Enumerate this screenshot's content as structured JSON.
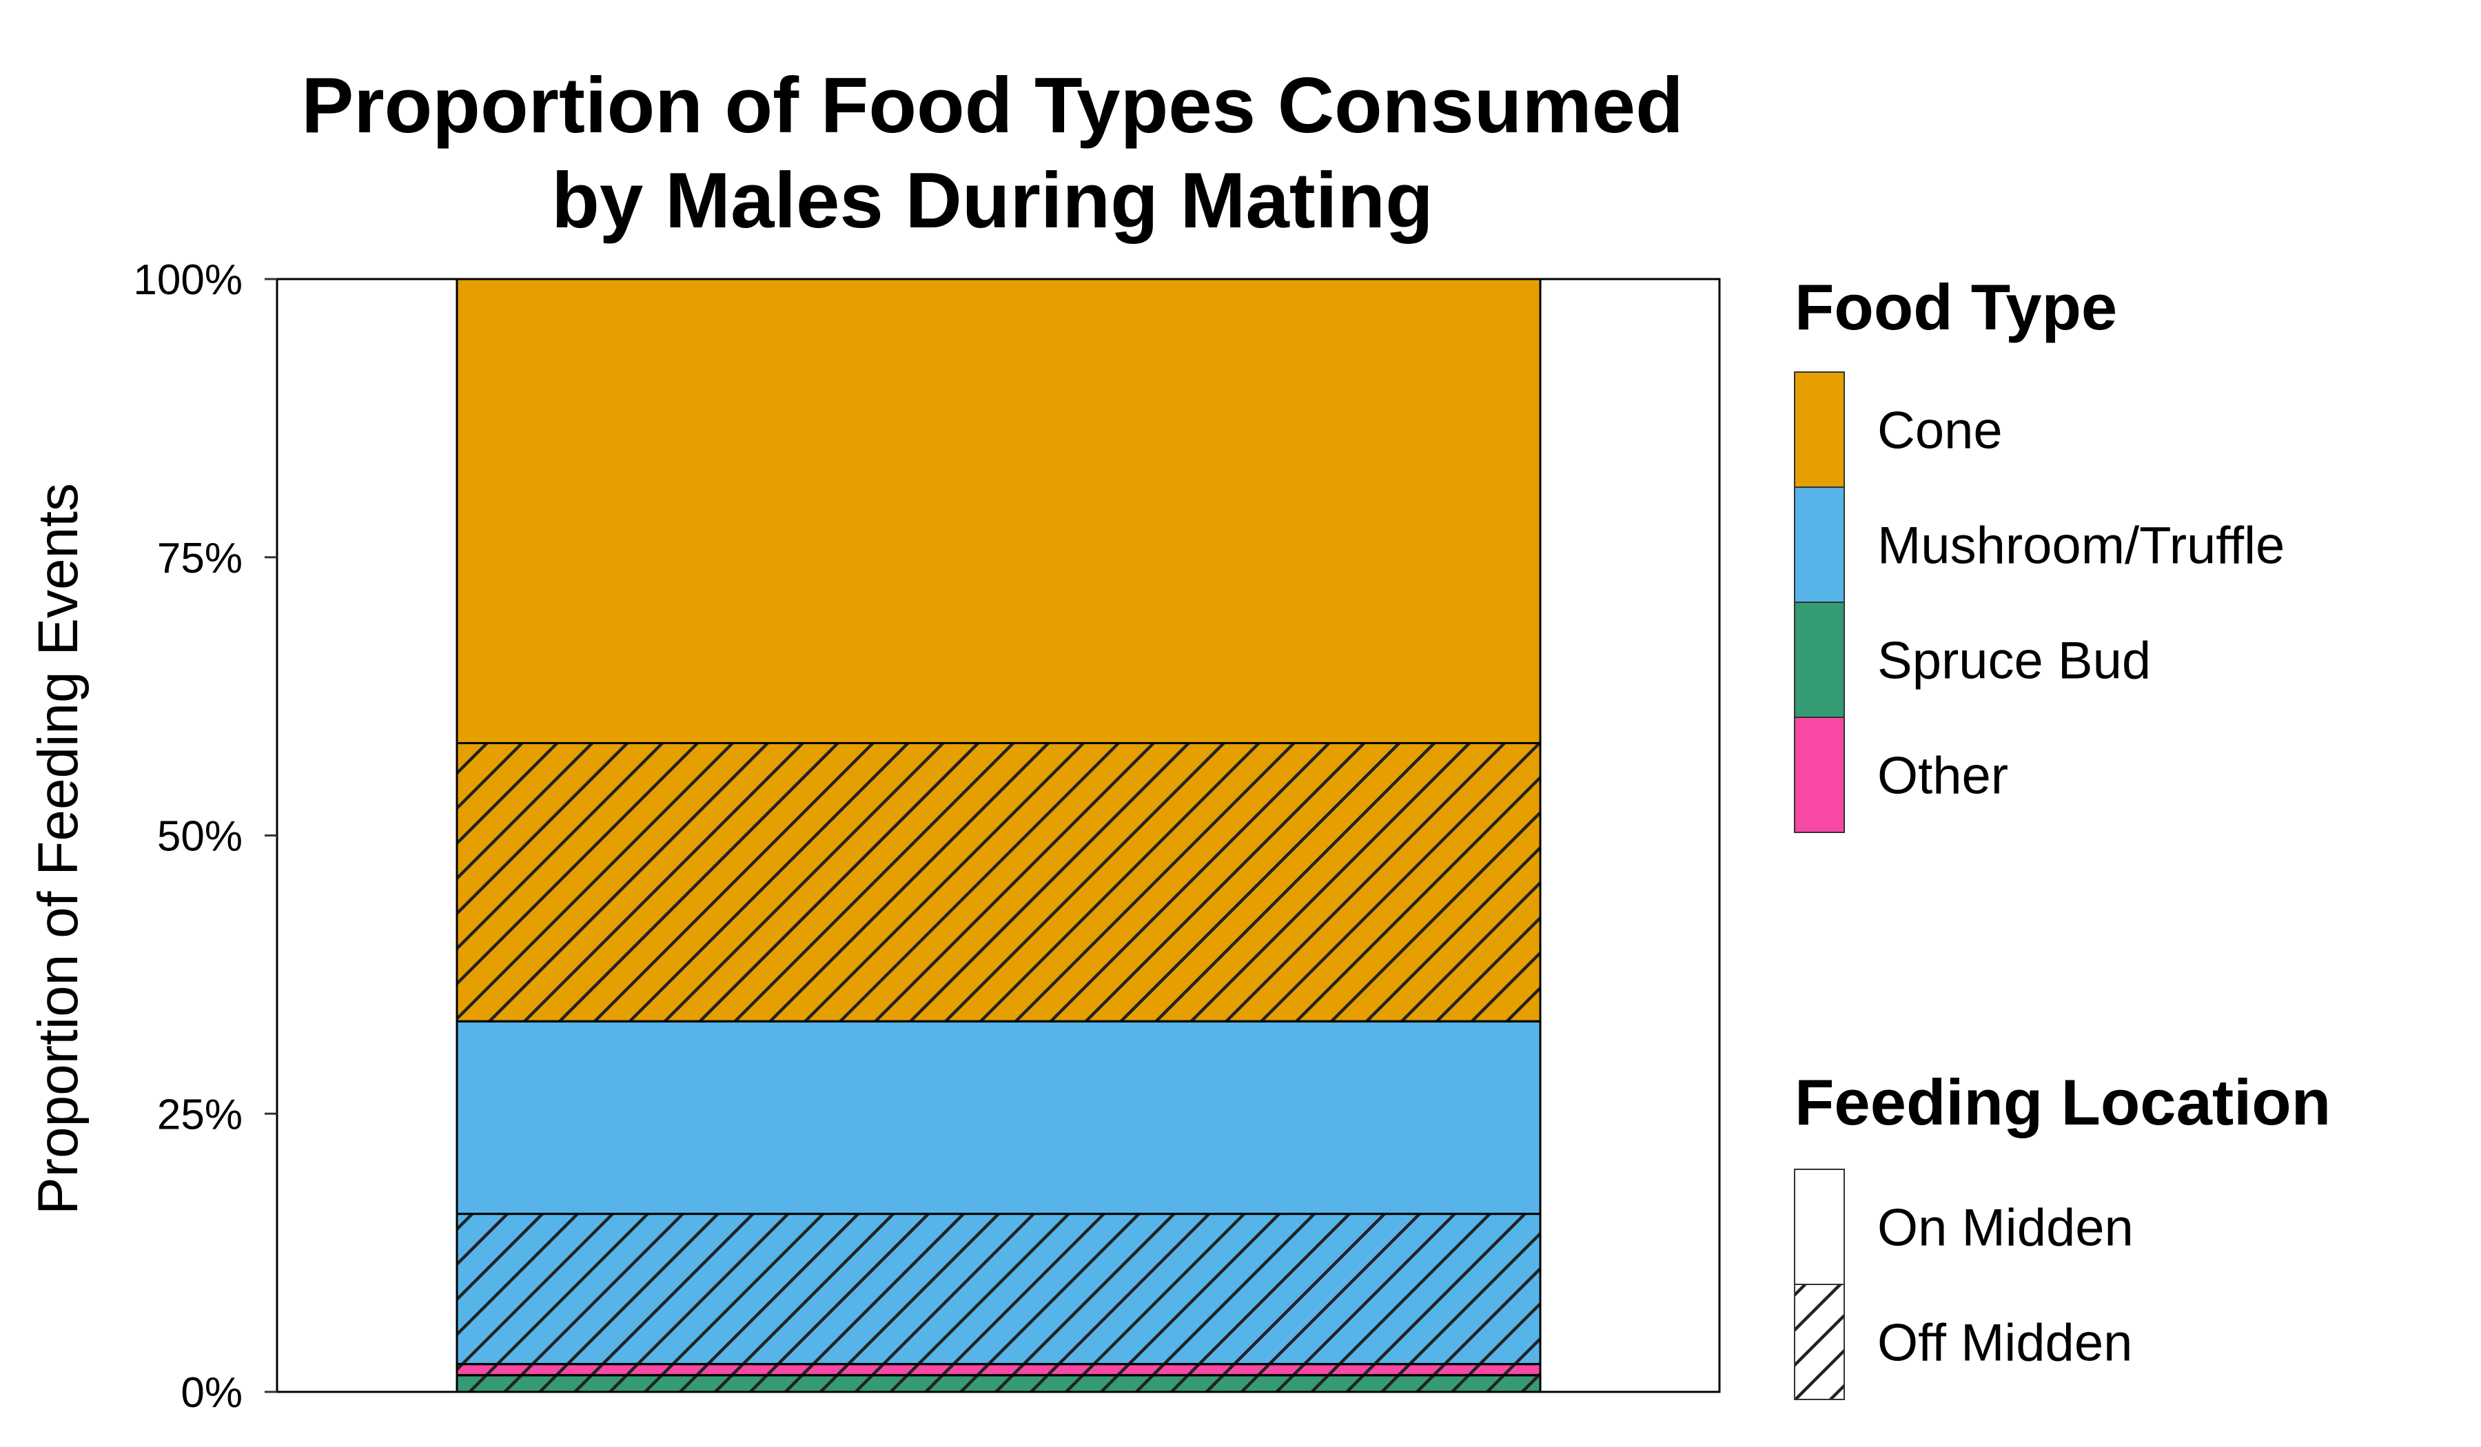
{
  "chart_data": {
    "type": "bar",
    "stacked": true,
    "title": [
      "Proportion of Food Types Consumed",
      "by Males During Mating"
    ],
    "ylabel": "Proportion of Feeding Events",
    "xlabel": "",
    "ylim": [
      0,
      1
    ],
    "yticks": [
      {
        "value": 0,
        "label": "0%"
      },
      {
        "value": 0.25,
        "label": "25%"
      },
      {
        "value": 0.5,
        "label": "50%"
      },
      {
        "value": 0.75,
        "label": "75%"
      },
      {
        "value": 1,
        "label": "100%"
      }
    ],
    "segments": [
      {
        "food": "Spruce Bud",
        "location": "Off Midden",
        "value": 0.015
      },
      {
        "food": "Other",
        "location": "Off Midden",
        "value": 0.01
      },
      {
        "food": "Mushroom/Truffle",
        "location": "Off Midden",
        "value": 0.135
      },
      {
        "food": "Mushroom/Truffle",
        "location": "On Midden",
        "value": 0.173
      },
      {
        "food": "Cone",
        "location": "Off Midden",
        "value": 0.25
      },
      {
        "food": "Cone",
        "location": "On Midden",
        "value": 0.417
      }
    ],
    "legend_food": {
      "title": "Food Type",
      "items": [
        {
          "label": "Cone",
          "color": "#E69F00"
        },
        {
          "label": "Mushroom/Truffle",
          "color": "#56B4E9"
        },
        {
          "label": "Spruce Bud",
          "color": "#359B73"
        },
        {
          "label": "Other",
          "color": "#F748A5"
        }
      ]
    },
    "legend_location": {
      "title": "Feeding Location",
      "items": [
        {
          "label": "On Midden",
          "pattern": "none"
        },
        {
          "label": "Off Midden",
          "pattern": "stripe"
        }
      ]
    },
    "legend_placement": "right",
    "grid": false
  }
}
